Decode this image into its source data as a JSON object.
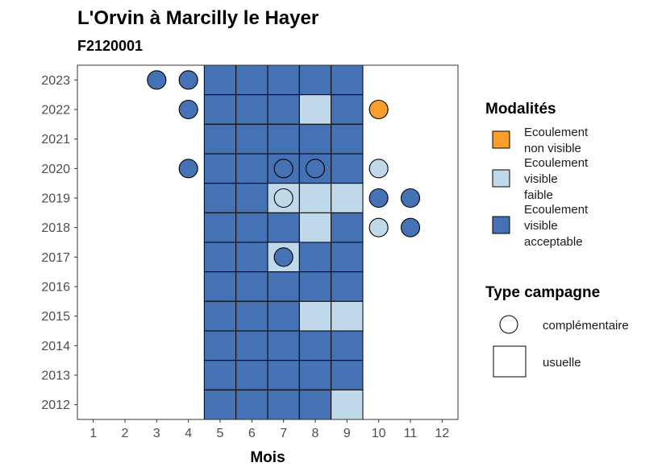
{
  "chart_data": {
    "type": "heatmap",
    "title": "L'Orvin à Marcilly le Hayer",
    "subtitle": "F2120001",
    "xlabel": "Mois",
    "ylabel": "",
    "x_ticks": [
      1,
      2,
      3,
      4,
      5,
      6,
      7,
      8,
      9,
      10,
      11,
      12
    ],
    "y_ticks": [
      2012,
      2013,
      2014,
      2015,
      2016,
      2017,
      2018,
      2019,
      2020,
      2021,
      2022,
      2023
    ],
    "xlim": [
      0.5,
      12.5
    ],
    "ylim": [
      2011.5,
      2023.5
    ],
    "modalites": {
      "non_visible": {
        "label": "Ecoulement non visible",
        "lines": [
          "Ecoulement",
          "non visible"
        ],
        "color": "#F79E2C"
      },
      "faible": {
        "label": "Ecoulement visible faible",
        "lines": [
          "Ecoulement",
          "visible",
          "faible"
        ],
        "color": "#BFD9EA"
      },
      "acceptable": {
        "label": "Ecoulement visible acceptable",
        "lines": [
          "Ecoulement",
          "visible",
          "acceptable"
        ],
        "color": "#4472B4"
      }
    },
    "usuelle": [
      {
        "year": 2023,
        "months": [
          "acceptable",
          "acceptable",
          "acceptable",
          "acceptable",
          "acceptable"
        ]
      },
      {
        "year": 2022,
        "months": [
          "acceptable",
          "acceptable",
          "acceptable",
          "faible",
          "acceptable"
        ]
      },
      {
        "year": 2021,
        "months": [
          "acceptable",
          "acceptable",
          "acceptable",
          "acceptable",
          "acceptable"
        ]
      },
      {
        "year": 2020,
        "months": [
          "acceptable",
          "acceptable",
          "acceptable",
          "acceptable",
          "acceptable"
        ]
      },
      {
        "year": 2019,
        "months": [
          "acceptable",
          "acceptable",
          "faible",
          "faible",
          "faible"
        ]
      },
      {
        "year": 2018,
        "months": [
          "acceptable",
          "acceptable",
          "acceptable",
          "faible",
          "acceptable"
        ]
      },
      {
        "year": 2017,
        "months": [
          "acceptable",
          "acceptable",
          "faible",
          "acceptable",
          "acceptable"
        ]
      },
      {
        "year": 2016,
        "months": [
          "acceptable",
          "acceptable",
          "acceptable",
          "acceptable",
          "acceptable"
        ]
      },
      {
        "year": 2015,
        "months": [
          "acceptable",
          "acceptable",
          "acceptable",
          "faible",
          "faible"
        ]
      },
      {
        "year": 2014,
        "months": [
          "acceptable",
          "acceptable",
          "acceptable",
          "acceptable",
          "acceptable"
        ]
      },
      {
        "year": 2013,
        "months": [
          "acceptable",
          "acceptable",
          "acceptable",
          "acceptable",
          "acceptable"
        ]
      },
      {
        "year": 2012,
        "months": [
          "acceptable",
          "acceptable",
          "acceptable",
          "acceptable",
          "faible"
        ]
      }
    ],
    "usuelle_first_month": 5,
    "complementaire": [
      {
        "year": 2023,
        "month": 3,
        "modalite": "acceptable"
      },
      {
        "year": 2023,
        "month": 4,
        "modalite": "acceptable"
      },
      {
        "year": 2022,
        "month": 4,
        "modalite": "acceptable"
      },
      {
        "year": 2022,
        "month": 10,
        "modalite": "non_visible"
      },
      {
        "year": 2020,
        "month": 4,
        "modalite": "acceptable"
      },
      {
        "year": 2020,
        "month": 7,
        "modalite": "acceptable"
      },
      {
        "year": 2020,
        "month": 8,
        "modalite": "acceptable"
      },
      {
        "year": 2020,
        "month": 10,
        "modalite": "faible"
      },
      {
        "year": 2019,
        "month": 7,
        "modalite": "faible"
      },
      {
        "year": 2019,
        "month": 10,
        "modalite": "acceptable"
      },
      {
        "year": 2019,
        "month": 11,
        "modalite": "acceptable"
      },
      {
        "year": 2018,
        "month": 10,
        "modalite": "faible"
      },
      {
        "year": 2018,
        "month": 11,
        "modalite": "acceptable"
      },
      {
        "year": 2017,
        "month": 7,
        "modalite": "acceptable"
      }
    ],
    "legend": {
      "modalites_title": "Modalités",
      "type_title": "Type campagne",
      "type_items": [
        "complémentaire",
        "usuelle"
      ]
    }
  }
}
